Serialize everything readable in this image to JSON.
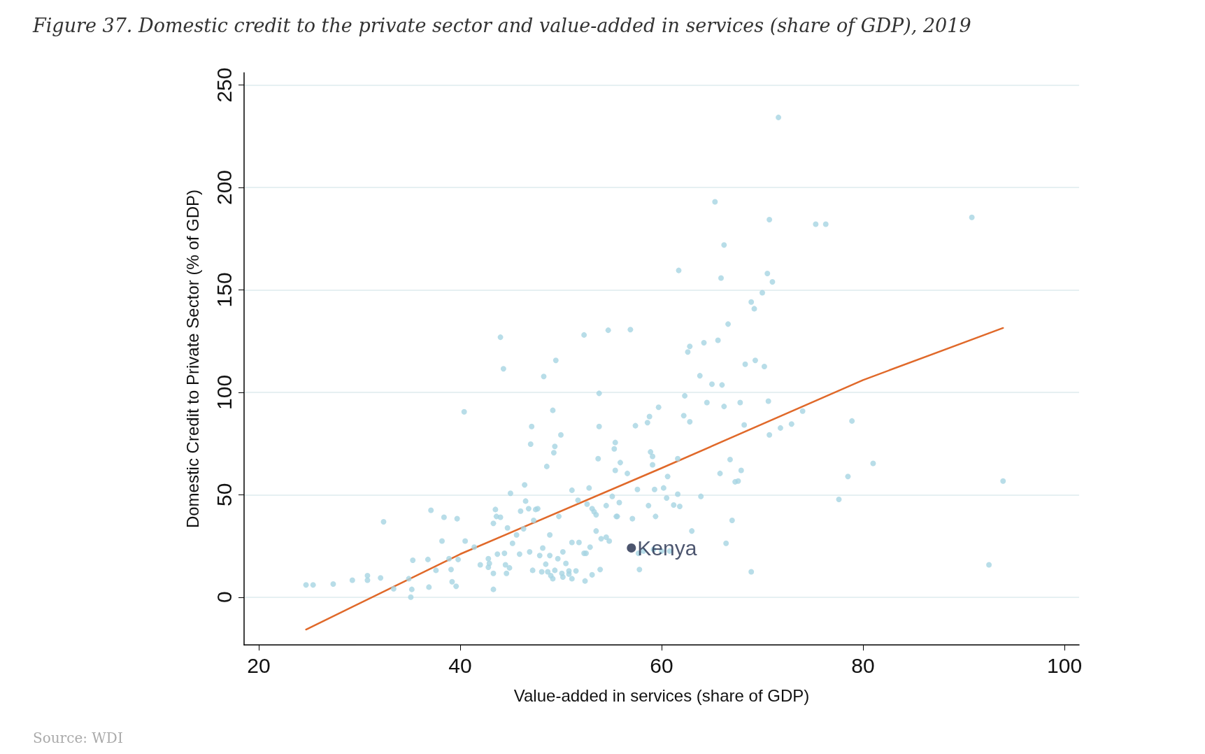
{
  "chart_data": {
    "type": "scatter",
    "title": "Figure 37. Domestic credit to the private sector and value-added in services (share of GDP), 2019",
    "xlabel": "Value-added in services (share of GDP)",
    "ylabel": "Domestic Credit to Private Sector (% of GDP)",
    "annotations": [
      "Source: WDI"
    ],
    "xlim": [
      18.55,
      101.45
    ],
    "xticks": [
      20,
      40,
      60,
      80,
      100
    ],
    "ylim": [
      -23.3,
      256
    ],
    "yticks": [
      0,
      50,
      100,
      150,
      200,
      250
    ],
    "grid": "y",
    "legend": false,
    "marker": "circle",
    "series": [
      {
        "color": "#a6d4e2",
        "x": [
          24.7,
          25.4,
          27.4,
          29.3,
          30.8,
          30.8,
          32.1,
          32.4,
          33.4,
          34.9,
          35.1,
          35.2,
          35.3,
          36.8,
          36.9,
          37.1,
          37.6,
          38.2,
          38.4,
          38.9,
          39.1,
          39.2,
          39.6,
          39.7,
          39.8,
          40.4,
          40.5,
          41.4,
          42.0,
          42.8,
          42.8,
          42.9,
          43.3,
          43.3,
          43.3,
          43.5,
          43.6,
          43.7,
          44.0,
          44.0,
          44.3,
          44.4,
          44.5,
          44.6,
          44.7,
          44.9,
          45.0,
          45.2,
          45.6,
          45.9,
          46.0,
          46.3,
          46.4,
          46.5,
          46.8,
          46.9,
          47.0,
          47.1,
          47.2,
          47.3,
          47.5,
          47.7,
          47.9,
          48.1,
          48.2,
          48.3,
          48.5,
          48.6,
          48.7,
          48.9,
          48.9,
          49.0,
          49.2,
          49.2,
          49.3,
          49.4,
          49.4,
          49.5,
          49.7,
          49.8,
          50.0,
          50.1,
          50.2,
          50.2,
          50.5,
          50.8,
          50.8,
          51.1,
          51.1,
          51.1,
          51.5,
          51.7,
          51.8,
          52.3,
          52.3,
          52.4,
          52.5,
          52.6,
          52.8,
          52.9,
          53.1,
          53.1,
          53.3,
          53.5,
          53.5,
          53.7,
          53.8,
          53.8,
          53.9,
          54.0,
          54.5,
          54.5,
          54.7,
          54.8,
          55.1,
          55.3,
          55.4,
          55.4,
          55.5,
          55.6,
          55.8,
          55.9,
          56.6,
          56.9,
          57.1,
          57.4,
          57.6,
          57.7,
          57.8,
          58.2,
          58.6,
          58.7,
          58.8,
          58.9,
          59.1,
          59.1,
          59.2,
          59.3,
          59.4,
          59.7,
          60.0,
          60.2,
          60.5,
          60.6,
          60.8,
          61.2,
          61.6,
          61.6,
          61.7,
          61.8,
          62.2,
          62.3,
          62.6,
          62.8,
          62.8,
          63.0,
          63.8,
          63.9,
          64.2,
          64.5,
          65.0,
          65.3,
          65.6,
          65.8,
          65.9,
          66.0,
          66.2,
          66.2,
          66.4,
          66.6,
          66.8,
          67.0,
          67.3,
          67.6,
          67.8,
          67.9,
          68.2,
          68.3,
          68.9,
          68.9,
          69.2,
          69.3,
          70.0,
          70.2,
          70.5,
          70.6,
          70.7,
          70.7,
          71.0,
          71.6,
          71.8,
          72.9,
          74.0,
          75.3,
          76.3,
          77.6,
          78.5,
          78.9,
          81.0,
          90.8,
          92.5,
          93.9
        ],
        "values": [
          6,
          6,
          6.4,
          8.3,
          10.5,
          8.3,
          9.4,
          36.8,
          4.1,
          9,
          0,
          3.8,
          18,
          18.4,
          4.9,
          42.4,
          13.1,
          27.4,
          39,
          18.8,
          13.5,
          7.5,
          5.3,
          38.3,
          18.4,
          90.5,
          27.4,
          24.4,
          15.8,
          18.8,
          14.6,
          16.5,
          3.8,
          11.6,
          36,
          42.8,
          39.4,
          21,
          39,
          126.9,
          111.5,
          21.4,
          15.8,
          11.6,
          33.8,
          14.3,
          50.7,
          26.3,
          30.4,
          21,
          42,
          33.4,
          54.8,
          46.9,
          43.2,
          22.1,
          74.7,
          83.3,
          13.1,
          37.5,
          42.8,
          43.2,
          20.3,
          12.4,
          24,
          107.7,
          16.1,
          63.8,
          12.4,
          20.3,
          30.4,
          10.5,
          9,
          91.2,
          70.5,
          73.6,
          13.1,
          115.6,
          18.8,
          39.4,
          79.2,
          11.6,
          9.8,
          22.1,
          16.5,
          11.3,
          12.8,
          52.2,
          26.7,
          9,
          12.8,
          47.3,
          26.7,
          128,
          21.4,
          7.9,
          21.4,
          45.4,
          53.3,
          24.4,
          43.2,
          10.9,
          41.7,
          32.3,
          40.2,
          67.6,
          83.3,
          99.5,
          13.5,
          28.5,
          29.3,
          44.7,
          130.3,
          27.4,
          49.2,
          72.4,
          75.5,
          61.9,
          39.4,
          39.4,
          46.2,
          65.7,
          60.4,
          130.6,
          38.3,
          83.7,
          52.6,
          21.4,
          13.5,
          22.5,
          85.2,
          44.7,
          88.2,
          70.9,
          64.6,
          68.7,
          23.3,
          52.6,
          39.4,
          92.7,
          22.5,
          53.3,
          48.4,
          58.9,
          22.5,
          45,
          50.3,
          67.6,
          159.5,
          44.3,
          88.6,
          98.3,
          119.7,
          122.4,
          85.6,
          32.3,
          108.1,
          49.2,
          124.2,
          95,
          104,
          193,
          125.4,
          60.4,
          155.8,
          103.6,
          171.9,
          93.1,
          26.3,
          133.3,
          67.2,
          37.5,
          56.3,
          56.7,
          95,
          61.9,
          84.1,
          113.7,
          12.4,
          144.1,
          140.8,
          115.6,
          148.6,
          112.6,
          158,
          95.7,
          184.3,
          79.2,
          153.9,
          234.2,
          82.6,
          84.5,
          90.8,
          182.1,
          182.1,
          47.7,
          58.9,
          86,
          65.3,
          185.4,
          15.8,
          56.7
        ]
      },
      {
        "type": "line",
        "color": "#e0692a",
        "marker": "none",
        "x": [
          24.7,
          40,
          60,
          80,
          93.9
        ],
        "values": [
          -15.8,
          21,
          63,
          106,
          131.4
        ]
      },
      {
        "name": "Kenya",
        "color": "#1f2a4a",
        "x": [
          57
        ],
        "values": [
          24
        ]
      }
    ]
  }
}
